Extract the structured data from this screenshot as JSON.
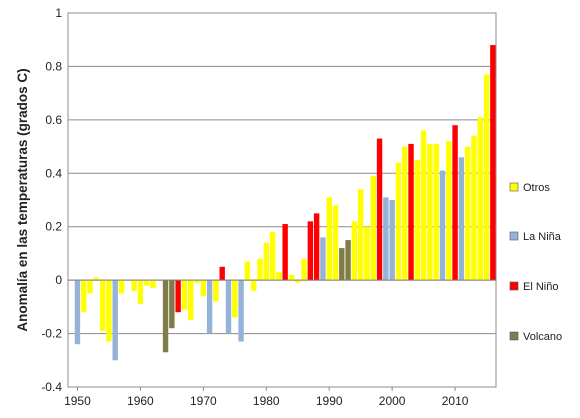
{
  "chart_data": {
    "type": "bar",
    "title": "",
    "xlabel": "",
    "ylabel": "Anomalía en las temperaturas (grados C)",
    "xlim": [
      1949,
      2016
    ],
    "ylim": [
      -0.4,
      1
    ],
    "x_ticks": [
      "1950",
      "1960",
      "1970",
      "1980",
      "1990",
      "2000",
      "2010"
    ],
    "y_ticks": [
      "-0.4",
      "-0.2",
      "0",
      "0.2",
      "0.4",
      "0.6",
      "0.8",
      "1"
    ],
    "grid": "horizontal",
    "legend_position": "right",
    "colors": {
      "otros": "#ffff00",
      "nina": "#95b3d7",
      "nino": "#ff0000",
      "volcano": "#7f7c47"
    },
    "series": [
      {
        "name": "Otros",
        "key": "otros"
      },
      {
        "name": "La Niña",
        "key": "nina"
      },
      {
        "name": "El Niño",
        "key": "nino"
      },
      {
        "name": "Volcano",
        "key": "volcano"
      }
    ],
    "bars": [
      {
        "x": 1950,
        "y": -0.24,
        "type": "nina"
      },
      {
        "x": 1951,
        "y": -0.12,
        "type": "otros"
      },
      {
        "x": 1952,
        "y": -0.05,
        "type": "otros"
      },
      {
        "x": 1953,
        "y": 0.01,
        "type": "otros"
      },
      {
        "x": 1954,
        "y": -0.19,
        "type": "otros"
      },
      {
        "x": 1955,
        "y": -0.23,
        "type": "otros"
      },
      {
        "x": 1956,
        "y": -0.3,
        "type": "nina"
      },
      {
        "x": 1957,
        "y": -0.05,
        "type": "otros"
      },
      {
        "x": 1958,
        "y": 0.0,
        "type": "otros"
      },
      {
        "x": 1959,
        "y": -0.04,
        "type": "otros"
      },
      {
        "x": 1960,
        "y": -0.09,
        "type": "otros"
      },
      {
        "x": 1961,
        "y": -0.02,
        "type": "otros"
      },
      {
        "x": 1962,
        "y": -0.03,
        "type": "otros"
      },
      {
        "x": 1963,
        "y": 0.0,
        "type": "otros"
      },
      {
        "x": 1964,
        "y": -0.27,
        "type": "volcano"
      },
      {
        "x": 1965,
        "y": -0.18,
        "type": "volcano"
      },
      {
        "x": 1966,
        "y": -0.12,
        "type": "nino"
      },
      {
        "x": 1967,
        "y": -0.11,
        "type": "otros"
      },
      {
        "x": 1968,
        "y": -0.15,
        "type": "otros"
      },
      {
        "x": 1969,
        "y": -0.01,
        "type": "otros"
      },
      {
        "x": 1970,
        "y": -0.06,
        "type": "otros"
      },
      {
        "x": 1971,
        "y": -0.2,
        "type": "nina"
      },
      {
        "x": 1972,
        "y": -0.08,
        "type": "otros"
      },
      {
        "x": 1973,
        "y": 0.05,
        "type": "nino"
      },
      {
        "x": 1974,
        "y": -0.2,
        "type": "nina"
      },
      {
        "x": 1975,
        "y": -0.14,
        "type": "otros"
      },
      {
        "x": 1976,
        "y": -0.23,
        "type": "nina"
      },
      {
        "x": 1977,
        "y": 0.07,
        "type": "otros"
      },
      {
        "x": 1978,
        "y": -0.04,
        "type": "otros"
      },
      {
        "x": 1979,
        "y": 0.08,
        "type": "otros"
      },
      {
        "x": 1980,
        "y": 0.14,
        "type": "otros"
      },
      {
        "x": 1981,
        "y": 0.18,
        "type": "otros"
      },
      {
        "x": 1982,
        "y": 0.03,
        "type": "otros"
      },
      {
        "x": 1983,
        "y": 0.21,
        "type": "nino"
      },
      {
        "x": 1984,
        "y": 0.02,
        "type": "otros"
      },
      {
        "x": 1985,
        "y": -0.01,
        "type": "otros"
      },
      {
        "x": 1986,
        "y": 0.08,
        "type": "otros"
      },
      {
        "x": 1987,
        "y": 0.22,
        "type": "nino"
      },
      {
        "x": 1988,
        "y": 0.25,
        "type": "nino"
      },
      {
        "x": 1989,
        "y": 0.16,
        "type": "nina"
      },
      {
        "x": 1990,
        "y": 0.31,
        "type": "otros"
      },
      {
        "x": 1991,
        "y": 0.28,
        "type": "otros"
      },
      {
        "x": 1992,
        "y": 0.12,
        "type": "volcano"
      },
      {
        "x": 1993,
        "y": 0.15,
        "type": "volcano"
      },
      {
        "x": 1994,
        "y": 0.22,
        "type": "otros"
      },
      {
        "x": 1995,
        "y": 0.34,
        "type": "otros"
      },
      {
        "x": 1996,
        "y": 0.2,
        "type": "otros"
      },
      {
        "x": 1997,
        "y": 0.39,
        "type": "otros"
      },
      {
        "x": 1998,
        "y": 0.53,
        "type": "nino"
      },
      {
        "x": 1999,
        "y": 0.31,
        "type": "nina"
      },
      {
        "x": 2000,
        "y": 0.3,
        "type": "nina"
      },
      {
        "x": 2001,
        "y": 0.44,
        "type": "otros"
      },
      {
        "x": 2002,
        "y": 0.5,
        "type": "otros"
      },
      {
        "x": 2003,
        "y": 0.51,
        "type": "nino"
      },
      {
        "x": 2004,
        "y": 0.45,
        "type": "otros"
      },
      {
        "x": 2005,
        "y": 0.56,
        "type": "otros"
      },
      {
        "x": 2006,
        "y": 0.51,
        "type": "otros"
      },
      {
        "x": 2007,
        "y": 0.51,
        "type": "otros"
      },
      {
        "x": 2008,
        "y": 0.41,
        "type": "nina"
      },
      {
        "x": 2009,
        "y": 0.52,
        "type": "otros"
      },
      {
        "x": 2010,
        "y": 0.58,
        "type": "nino"
      },
      {
        "x": 2011,
        "y": 0.46,
        "type": "nina"
      },
      {
        "x": 2012,
        "y": 0.5,
        "type": "otros"
      },
      {
        "x": 2013,
        "y": 0.54,
        "type": "otros"
      },
      {
        "x": 2014,
        "y": 0.61,
        "type": "otros"
      },
      {
        "x": 2015,
        "y": 0.77,
        "type": "otros"
      },
      {
        "x": 2016,
        "y": 0.88,
        "type": "nino"
      }
    ]
  }
}
